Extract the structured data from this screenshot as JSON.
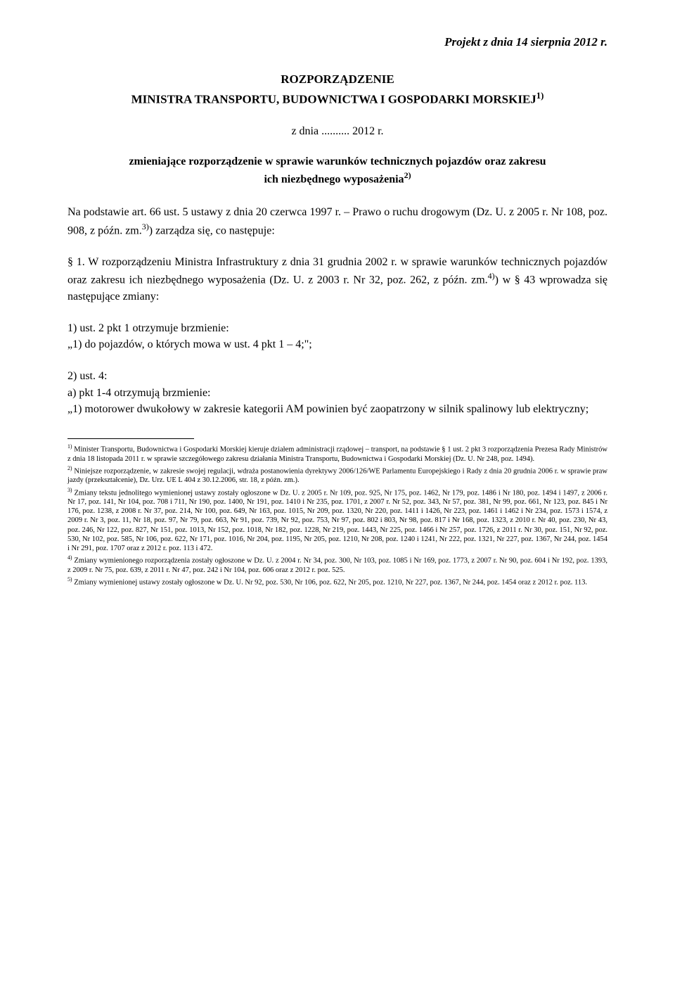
{
  "document": {
    "text_color": "#000000",
    "background_color": "#ffffff",
    "font_family": "Times New Roman",
    "base_font_size_pt": 12,
    "footnote_font_size_pt": 8,
    "header": "Projekt z dnia 14 sierpnia 2012 r.",
    "title": "ROZPORZĄDZENIE",
    "subtitle_prefix": "MINISTRA TRANSPORTU, BUDOWNICTWA I GOSPODARKI MORSKIEJ",
    "subtitle_sup": "1)",
    "date_line": "z dnia .......... 2012 r.",
    "subject_line1_bold": "zmieniające rozporządzenie w sprawie warunków technicznych pojazdów oraz zakresu",
    "subject_line2_prefix": "ich niezbędnego wyposażenia",
    "subject_line2_sup": "2)",
    "p1_a": "Na podstawie art. 66 ust. 5 ustawy z dnia 20 czerwca 1997 r. – Prawo o ruchu drogowym (Dz. U. z 2005 r. Nr 108, poz. 908, z późn. zm.",
    "p1_sup": "3)",
    "p1_b": ") zarządza się, co następuje:",
    "p2_a": "§ 1. W rozporządzeniu Ministra Infrastruktury z dnia 31 grudnia 2002 r. w sprawie warunków technicznych pojazdów oraz zakresu ich niezbędnego wyposażenia (Dz. U. z 2003 r. Nr 32, poz. 262, z późn. zm.",
    "p2_sup": "4)",
    "p2_b": ") w § 43 wprowadza się następujące zmiany:",
    "p3_line1": "1) ust. 2 pkt 1 otrzymuje brzmienie:",
    "p3_line2": "„1) do pojazdów, o których mowa w ust. 4 pkt 1 – 4;\";",
    "p4_line1": "2) ust. 4:",
    "p4_line2": "a) pkt 1-4 otrzymują brzmienie:",
    "p4_line3": "„1) motorower dwukołowy w zakresie kategorii AM powinien być zaopatrzony w silnik spalinowy lub elektryczny;",
    "footnotes": {
      "fn1_sup": "1)",
      "fn1": " Minister Transportu, Budownictwa i Gospodarki Morskiej kieruje działem administracji rządowej – transport, na podstawie § 1 ust. 2 pkt 3 rozporządzenia Prezesa Rady Ministrów z dnia 18 listopada 2011 r. w sprawie szczegółowego zakresu działania Ministra Transportu, Budownictwa i Gospodarki Morskiej (Dz. U. Nr 248, poz. 1494).",
      "fn2_sup": "2)",
      "fn2": " Niniejsze rozporządzenie, w zakresie swojej regulacji, wdraża postanowienia dyrektywy 2006/126/WE Parlamentu Europejskiego i Rady z dnia 20 grudnia 2006 r. w sprawie praw jazdy (przekształcenie), Dz. Urz. UE L 404 z 30.12.2006, str. 18, z późn. zm.).",
      "fn3_sup": "3)",
      "fn3": " Zmiany tekstu jednolitego wymienionej ustawy zostały ogłoszone w  Dz. U. z 2005 r. Nr 109, poz. 925, Nr 175, poz. 1462, Nr 179, poz. 1486 i Nr 180, poz. 1494 i 1497, z 2006 r. Nr 17, poz. 141, Nr 104, poz. 708 i 711, Nr 190, poz. 1400, Nr 191, poz. 1410 i Nr 235, poz. 1701, z 2007 r. Nr 52, poz. 343, Nr 57, poz. 381, Nr 99, poz. 661, Nr 123, poz. 845 i Nr 176, poz. 1238, z 2008 r. Nr 37, poz. 214, Nr 100, poz. 649, Nr 163, poz. 1015, Nr 209, poz. 1320, Nr 220, poz. 1411 i 1426, Nr 223, poz. 1461 i 1462 i Nr 234, poz. 1573 i 1574, z 2009 r. Nr 3, poz. 11, Nr 18, poz. 97, Nr 79, poz. 663, Nr 91, poz. 739, Nr 92, poz. 753, Nr 97, poz. 802 i 803, Nr 98, poz. 817 i Nr 168, poz. 1323, z 2010 r. Nr 40, poz. 230, Nr 43, poz. 246, Nr 122, poz. 827, Nr 151, poz. 1013, Nr 152, poz. 1018, Nr 182, poz. 1228, Nr 219, poz. 1443, Nr 225, poz. 1466 i Nr 257, poz. 1726, z 2011 r. Nr 30, poz. 151, Nr 92, poz. 530, Nr 102, poz. 585, Nr 106, poz. 622, Nr 171, poz. 1016, Nr 204, poz. 1195, Nr 205, poz. 1210, Nr 208, poz. 1240 i 1241, Nr 222, poz. 1321, Nr 227, poz. 1367, Nr 244, poz. 1454 i Nr 291, poz. 1707 oraz z 2012 r. poz. 113 i 472.",
      "fn4_sup": "4)",
      "fn4": " Zmiany wymienionego rozporządzenia zostały ogłoszone w Dz. U. z 2004 r. Nr 34, poz. 300, Nr 103, poz. 1085 i Nr 169, poz. 1773, z 2007 r. Nr 90, poz. 604 i Nr 192, poz. 1393, z 2009 r. Nr 75, poz. 639, z 2011 r. Nr 47, poz. 242 i Nr 104, poz. 606 oraz z 2012 r. poz. 525.",
      "fn5_sup": "5)",
      "fn5": " Zmiany wymienionej ustawy zostały ogłoszone w Dz. U. Nr 92, poz. 530, Nr 106, poz. 622, Nr 205, poz. 1210, Nr 227, poz. 1367, Nr 244, poz. 1454 oraz z 2012 r. poz. 113."
    }
  }
}
